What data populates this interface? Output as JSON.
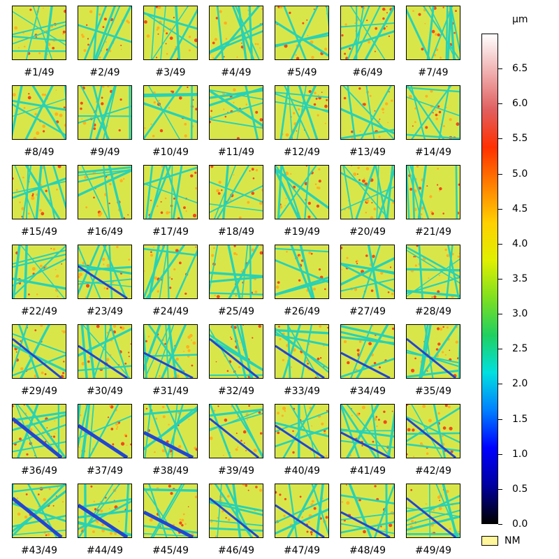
{
  "chart_data": {
    "type": "heatmap",
    "panels": [
      "#1/49",
      "#2/49",
      "#3/49",
      "#4/49",
      "#5/49",
      "#6/49",
      "#7/49",
      "#8/49",
      "#9/49",
      "#10/49",
      "#11/49",
      "#12/49",
      "#13/49",
      "#14/49",
      "#15/49",
      "#16/49",
      "#17/49",
      "#18/49",
      "#19/49",
      "#20/49",
      "#21/49",
      "#22/49",
      "#23/49",
      "#24/49",
      "#25/49",
      "#26/49",
      "#27/49",
      "#28/49",
      "#29/49",
      "#30/49",
      "#31/49",
      "#32/49",
      "#33/49",
      "#34/49",
      "#35/49",
      "#36/49",
      "#37/49",
      "#38/49",
      "#39/49",
      "#40/49",
      "#41/49",
      "#42/49",
      "#43/49",
      "#44/49",
      "#45/49",
      "#46/49",
      "#47/49",
      "#48/49",
      "#49/49"
    ],
    "colorbar": {
      "unit": "µm",
      "range": [
        0.0,
        7.0
      ],
      "ticks": [
        "0.0",
        "0.5",
        "1.0",
        "1.5",
        "2.0",
        "2.5",
        "3.0",
        "3.5",
        "4.0",
        "4.5",
        "5.0",
        "5.5",
        "6.0",
        "6.5"
      ],
      "colormap": [
        "#000000",
        "#0000a0",
        "#0000ff",
        "#0080ff",
        "#00e0e0",
        "#20d060",
        "#80e020",
        "#e0f000",
        "#ffd000",
        "#ff8000",
        "#ff3000",
        "#e06060",
        "#f0b0b0",
        "#ffffff"
      ],
      "legend_nm": "NM",
      "legend_nm_color": "#fff59a"
    },
    "surface_colors": {
      "base": "#d9e64a",
      "scratch": "#28d2b4",
      "deep_scratch": "#2246d2",
      "peak": "#f24a1a",
      "high": "#ffb020"
    }
  }
}
